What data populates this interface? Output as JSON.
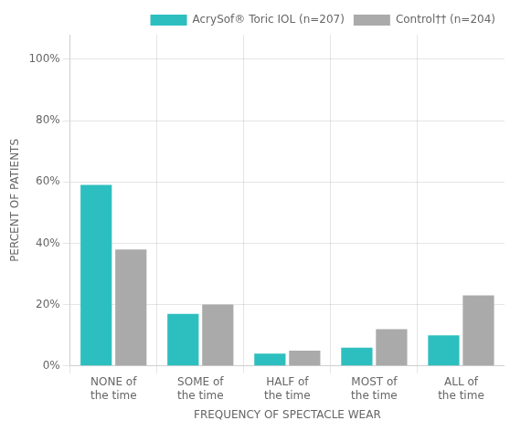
{
  "chart_data": {
    "type": "bar",
    "categories": [
      "NONE of\nthe time",
      "SOME of\nthe time",
      "HALF of\nthe time",
      "MOST of\nthe time",
      "ALL of\nthe time"
    ],
    "series": [
      {
        "name": "AcrySof® Toric IOL (n=207)",
        "color": "#2dbfbf",
        "values": [
          59,
          17,
          4,
          6,
          10
        ]
      },
      {
        "name": "Control†† (n=204)",
        "color": "#aaaaaa",
        "values": [
          38,
          20,
          5,
          12,
          23
        ]
      }
    ],
    "xlabel": "FREQUENCY OF SPECTACLE WEAR",
    "ylabel": "PERCENT OF PATIENTS",
    "ylim": [
      0,
      108
    ],
    "yticks": [
      {
        "value": 0,
        "label": "0%"
      },
      {
        "value": 20,
        "label": "20%"
      },
      {
        "value": 40,
        "label": "40%"
      },
      {
        "value": 60,
        "label": "60%"
      },
      {
        "value": 80,
        "label": "80%"
      },
      {
        "value": 100,
        "label": "100%"
      }
    ],
    "grid": true,
    "legend": "upper right"
  }
}
